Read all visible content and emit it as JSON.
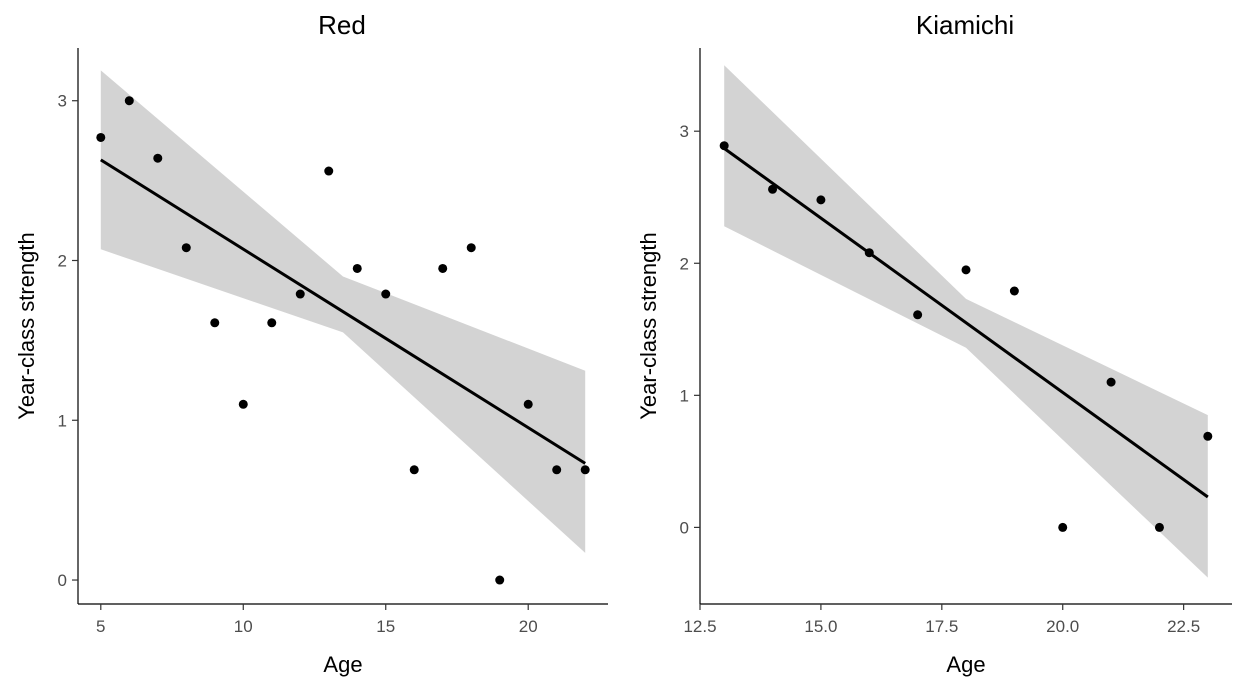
{
  "chart_data": [
    {
      "type": "scatter",
      "title": "Red",
      "xlabel": "Age",
      "ylabel": "Year-class strength",
      "xlim": [
        4.2,
        22.8
      ],
      "ylim": [
        -0.15,
        3.33
      ],
      "xticks": [
        5,
        10,
        15,
        20
      ],
      "yticks": [
        0,
        1,
        2,
        3
      ],
      "xtick_labels": [
        "5",
        "10",
        "15",
        "20"
      ],
      "ytick_labels": [
        "0",
        "1",
        "2",
        "3"
      ],
      "grid": false,
      "legend": "none",
      "colors": {
        "points": "#000000",
        "fit_line": "#000000",
        "band": "#d3d3d3"
      },
      "points": {
        "x": [
          5,
          6,
          7,
          8,
          9,
          10,
          11,
          12,
          13,
          14,
          15,
          16,
          17,
          18,
          19,
          20,
          21,
          22
        ],
        "y": [
          2.77,
          3.0,
          2.64,
          2.08,
          1.61,
          1.1,
          1.61,
          1.79,
          2.56,
          1.95,
          1.79,
          0.69,
          1.95,
          2.08,
          0.0,
          1.1,
          0.69,
          0.69
        ]
      },
      "fit": {
        "x": [
          5,
          22
        ],
        "y": [
          2.63,
          0.73
        ]
      },
      "band": {
        "x": [
          5,
          13.5,
          22
        ],
        "lower": [
          2.07,
          1.55,
          0.17
        ],
        "upper": [
          3.19,
          1.9,
          1.31
        ]
      }
    },
    {
      "type": "scatter",
      "title": "Kiamichi",
      "xlabel": "Age",
      "ylabel": "Year-class strength",
      "xlim": [
        12.5,
        23.5
      ],
      "ylim": [
        -0.58,
        3.63
      ],
      "xticks": [
        12.5,
        15.0,
        17.5,
        20.0,
        22.5
      ],
      "yticks": [
        0,
        1,
        2,
        3
      ],
      "xtick_labels": [
        "12.5",
        "15.0",
        "17.5",
        "20.0",
        "22.5"
      ],
      "ytick_labels": [
        "0",
        "1",
        "2",
        "3"
      ],
      "grid": false,
      "legend": "none",
      "colors": {
        "points": "#000000",
        "fit_line": "#000000",
        "band": "#d3d3d3"
      },
      "points": {
        "x": [
          13,
          14,
          15,
          16,
          17,
          18,
          19,
          20,
          21,
          22,
          23
        ],
        "y": [
          2.89,
          2.56,
          2.48,
          2.08,
          1.61,
          1.95,
          1.79,
          0.0,
          1.1,
          0.0,
          0.69
        ]
      },
      "fit": {
        "x": [
          13,
          23
        ],
        "y": [
          2.87,
          0.23
        ]
      },
      "band": {
        "x": [
          13,
          18,
          23
        ],
        "lower": [
          2.28,
          1.36,
          -0.38
        ],
        "upper": [
          3.5,
          1.73,
          0.85
        ]
      }
    }
  ]
}
